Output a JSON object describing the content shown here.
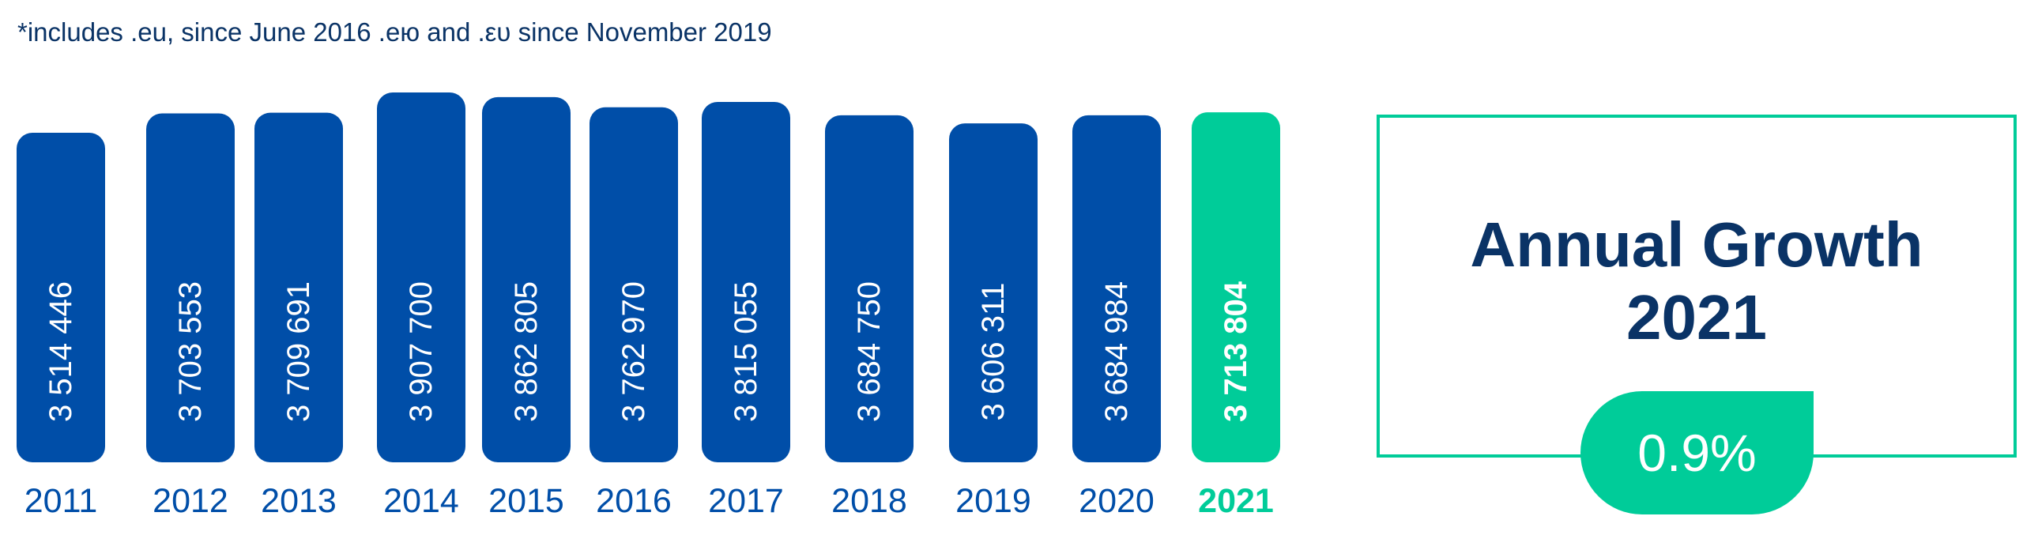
{
  "footnote": "*includes .eu, since June 2016 .ею and .ευ since November 2019",
  "colors": {
    "bar": "#004ea8",
    "highlight": "#00cc99",
    "text_dark": "#0a3366"
  },
  "chart_data": {
    "type": "bar",
    "categories": [
      "2011",
      "2012",
      "2013",
      "2014",
      "2015",
      "2016",
      "2017",
      "2018",
      "2019",
      "2020",
      "2021"
    ],
    "values": [
      3514446,
      3703553,
      3709691,
      3907700,
      3862805,
      3762970,
      3815055,
      3684750,
      3606311,
      3684984,
      3713804
    ],
    "value_labels": [
      "3 514 446",
      "3 703 553",
      "3 709 691",
      "3 907 700",
      "3 862 805",
      "3 762 970",
      "3 815 055",
      "3 684 750",
      "3 606 311",
      "3 684 984",
      "3 713 804"
    ],
    "highlight_category": "2021",
    "title": "",
    "xlabel": "",
    "ylabel": ""
  },
  "growth": {
    "title_line1": "Annual Growth",
    "title_line2": "2021",
    "value": "0.9%"
  }
}
